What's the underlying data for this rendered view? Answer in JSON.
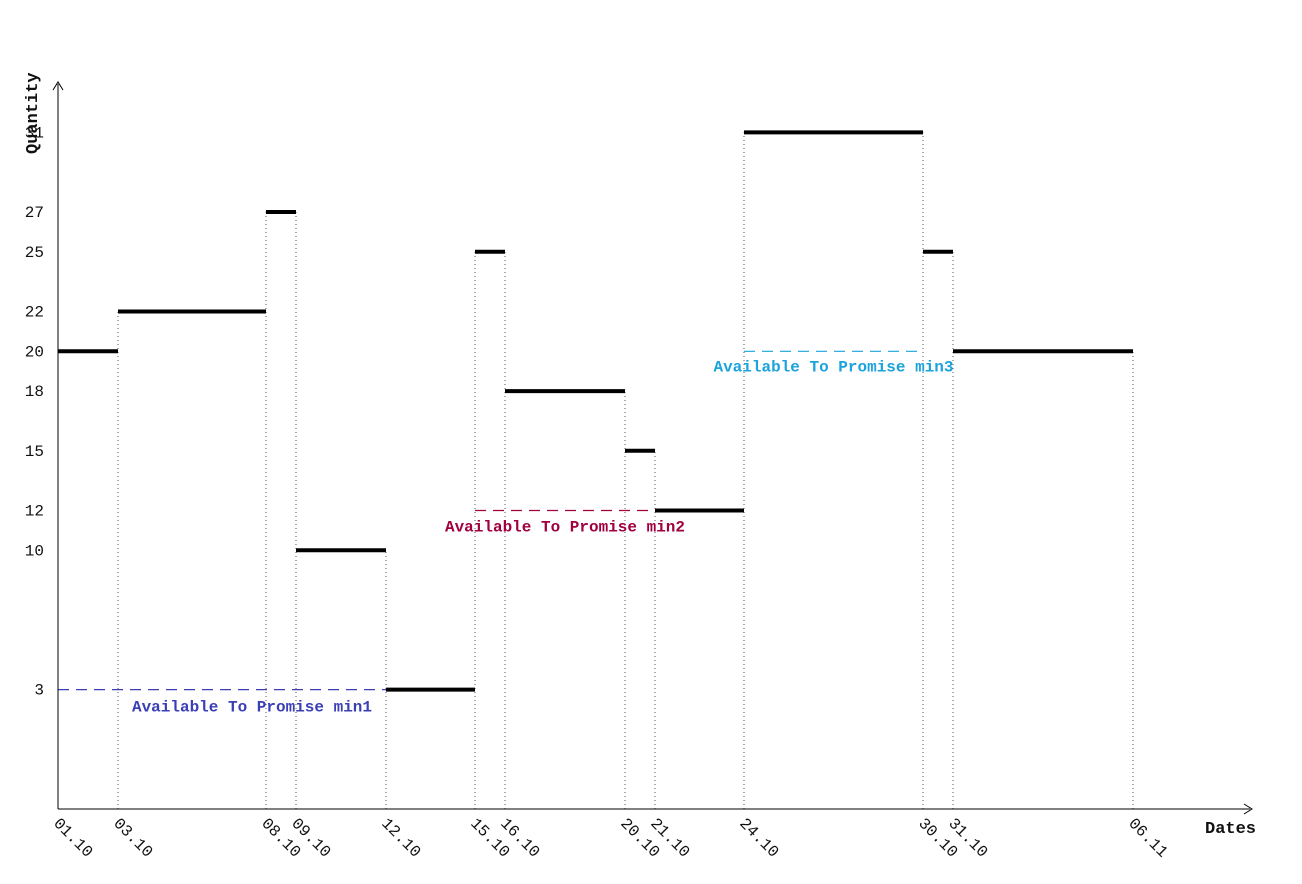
{
  "chart_data": {
    "type": "step",
    "xlabel": "Dates",
    "ylabel": "Quantity",
    "ylim": [
      -3,
      36
    ],
    "y_ticks": [
      3,
      10,
      12,
      15,
      18,
      20,
      22,
      25,
      27,
      31
    ],
    "x_ticks": [
      "01.10",
      "03.10",
      "08.10",
      "09.10",
      "12.10",
      "15.10",
      "16.10",
      "20.10",
      "21.10",
      "24.10",
      "30.10",
      "31.10",
      "06.11"
    ],
    "steps": [
      {
        "from": "01.10",
        "to": "03.10",
        "value": 20
      },
      {
        "from": "03.10",
        "to": "08.10",
        "value": 22
      },
      {
        "from": "08.10",
        "to": "09.10",
        "value": 27
      },
      {
        "from": "09.10",
        "to": "12.10",
        "value": 10
      },
      {
        "from": "12.10",
        "to": "15.10",
        "value": 3
      },
      {
        "from": "15.10",
        "to": "16.10",
        "value": 25
      },
      {
        "from": "16.10",
        "to": "20.10",
        "value": 18
      },
      {
        "from": "20.10",
        "to": "21.10",
        "value": 15
      },
      {
        "from": "21.10",
        "to": "24.10",
        "value": 12
      },
      {
        "from": "24.10",
        "to": "30.10",
        "value": 31
      },
      {
        "from": "30.10",
        "to": "31.10",
        "value": 25
      },
      {
        "from": "31.10",
        "to": "06.11",
        "value": 20
      }
    ],
    "atp_lines": [
      {
        "label": "Available To Promise min1",
        "from": "01.10",
        "to": "12.10",
        "value": 3,
        "color": "#3b3fb5"
      },
      {
        "label": "Available To Promise min2",
        "from": "15.10",
        "to": "21.10",
        "value": 12,
        "color": "#a0003f"
      },
      {
        "label": "Available To Promise min3",
        "from": "24.10",
        "to": "30.10",
        "value": 20,
        "color": "#1aa3dc"
      }
    ],
    "grid": false
  }
}
